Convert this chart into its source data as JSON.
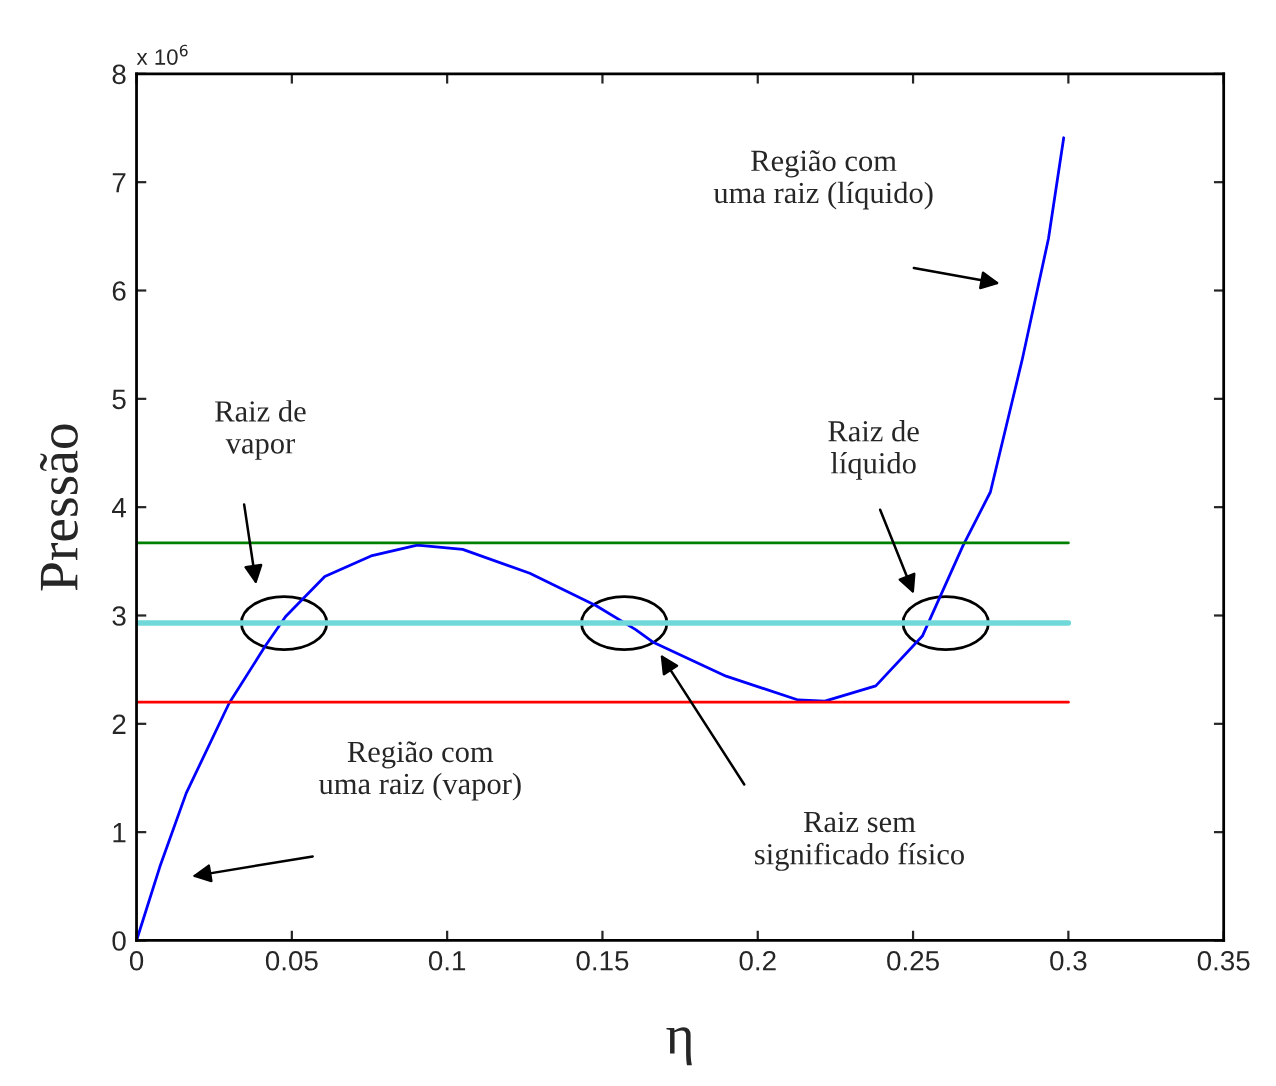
{
  "chart_data": {
    "type": "line",
    "xlabel": "η",
    "ylabel": "Pressão",
    "xlim": [
      0,
      0.35
    ],
    "xticks": [
      0,
      0.05,
      0.1,
      0.15,
      0.2,
      0.25,
      0.3,
      0.35
    ],
    "ylim": [
      0,
      8
    ],
    "yticks": [
      0,
      1,
      2,
      3,
      4,
      5,
      6,
      7,
      8
    ],
    "grid": false,
    "legend": false,
    "marker": "none",
    "line_style": "solid",
    "series": [
      {
        "color": "#0000ff",
        "x": [
          0,
          0.0075,
          0.016,
          0.0298,
          0.0415,
          0.048,
          0.0606,
          0.0755,
          0.0904,
          0.105,
          0.1266,
          0.148,
          0.1607,
          0.1665,
          0.1898,
          0.213,
          0.2216,
          0.238,
          0.253,
          0.266,
          0.2749,
          0.2852,
          0.2936,
          0.2985
        ],
        "values": [
          0,
          0.68,
          1.36,
          2.19,
          2.72,
          2.99,
          3.36,
          3.55,
          3.65,
          3.61,
          3.39,
          3.09,
          2.87,
          2.75,
          2.44,
          2.22,
          2.21,
          2.35,
          2.81,
          3.64,
          4.14,
          5.37,
          6.48,
          7.41
        ]
      },
      {
        "color": "#008000",
        "x": [
          0,
          0.3
        ],
        "values": [
          3.67,
          3.67
        ]
      },
      {
        "color": "#70d8d8",
        "x": [
          0,
          0.3
        ],
        "values": [
          2.93,
          2.93
        ]
      },
      {
        "color": "#ff0000",
        "x": [
          0,
          0.3
        ],
        "values": [
          2.2,
          2.2
        ]
      }
    ],
    "annotations": [
      "x 10$^{6}$",
      "Raiz de\nvapor",
      "Região com\numa raiz (vapor)",
      "Raiz sem\nsignificado físico",
      "Raiz de\nlíquido",
      "Região com\numa raiz (líquido)"
    ]
  }
}
